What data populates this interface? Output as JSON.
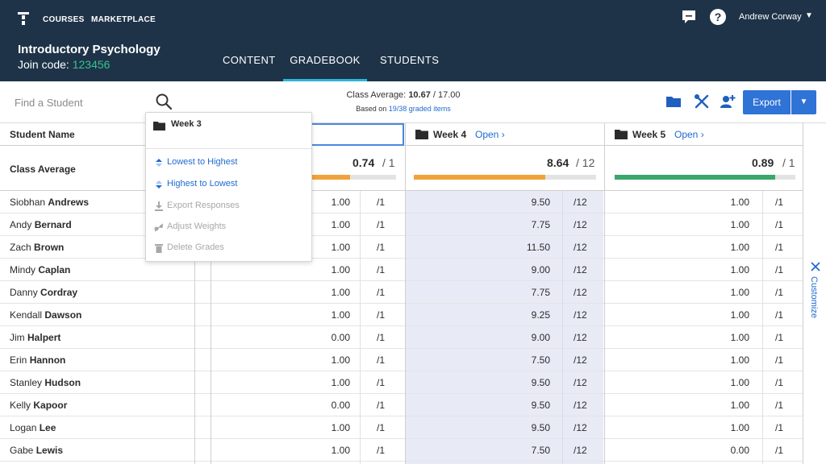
{
  "nav": {
    "links": [
      "COURSES",
      "MARKETPLACE"
    ],
    "course_title": "Introductory Psychology",
    "join_label": "Join code:",
    "join_code": "123456",
    "tabs": [
      {
        "label": "CONTENT",
        "active": false
      },
      {
        "label": "GRADEBOOK",
        "active": true
      },
      {
        "label": "STUDENTS",
        "active": false
      }
    ],
    "user_name": "Andrew Corway",
    "colors": {
      "header_bg": "#1e3348",
      "join_code": "#34c38f",
      "tab_underline": "#2bb5d8"
    }
  },
  "toolbar": {
    "search_placeholder": "Find a Student",
    "class_average_label": "Class Average:",
    "class_average_value": "10.67",
    "class_average_max": "/ 17.00",
    "based_on_label": "Based on",
    "graded_items": "19/38 graded items",
    "export_label": "Export",
    "icons": [
      "folder-icon",
      "wrench-icon",
      "add-user-icon"
    ],
    "colors": {
      "primary": "#2f73d6",
      "link": "#1f6bd1"
    }
  },
  "grid": {
    "name_header": "Student Name",
    "class_avg_label": "Class Average",
    "weeks": [
      {
        "name": "Week 3",
        "open_label": "",
        "avg": "0.74",
        "max": "/ 1",
        "fill": 0.74,
        "color": "#f0a23b"
      },
      {
        "name": "Week 4",
        "open_label": "Open",
        "avg": "8.64",
        "max": "/ 12",
        "fill": 0.72,
        "color": "#f0a23b"
      },
      {
        "name": "Week 5",
        "open_label": "Open",
        "avg": "0.89",
        "max": "/ 1",
        "fill": 0.89,
        "color": "#3aa66a"
      }
    ],
    "students": [
      {
        "first": "Siobhan",
        "last": "Andrews",
        "w3": "1.00",
        "w3max": "/1",
        "w4": "9.50",
        "w4max": "/12",
        "w5": "1.00",
        "w5max": "/1"
      },
      {
        "first": "Andy",
        "last": "Bernard",
        "w3": "1.00",
        "w3max": "/1",
        "w4": "7.75",
        "w4max": "/12",
        "w5": "1.00",
        "w5max": "/1"
      },
      {
        "first": "Zach",
        "last": "Brown",
        "w3": "1.00",
        "w3max": "/1",
        "w4": "11.50",
        "w4max": "/12",
        "w5": "1.00",
        "w5max": "/1"
      },
      {
        "first": "Mindy",
        "last": "Caplan",
        "w3": "1.00",
        "w3max": "/1",
        "w4": "9.00",
        "w4max": "/12",
        "w5": "1.00",
        "w5max": "/1"
      },
      {
        "first": "Danny",
        "last": "Cordray",
        "w3": "1.00",
        "w3max": "/1",
        "w4": "7.75",
        "w4max": "/12",
        "w5": "1.00",
        "w5max": "/1"
      },
      {
        "first": "Kendall",
        "last": "Dawson",
        "w3": "1.00",
        "w3max": "/1",
        "w4": "9.25",
        "w4max": "/12",
        "w5": "1.00",
        "w5max": "/1"
      },
      {
        "first": "Jim",
        "last": "Halpert",
        "w3": "0.00",
        "w3max": "/1",
        "w4": "9.00",
        "w4max": "/12",
        "w5": "1.00",
        "w5max": "/1"
      },
      {
        "first": "Erin",
        "last": "Hannon",
        "w3": "1.00",
        "w3max": "/1",
        "w4": "7.50",
        "w4max": "/12",
        "w5": "1.00",
        "w5max": "/1"
      },
      {
        "first": "Stanley",
        "last": "Hudson",
        "w3": "1.00",
        "w3max": "/1",
        "w4": "9.50",
        "w4max": "/12",
        "w5": "1.00",
        "w5max": "/1"
      },
      {
        "first": "Kelly",
        "last": "Kapoor",
        "w3": "0.00",
        "w3max": "/1",
        "w4": "9.50",
        "w4max": "/12",
        "w5": "1.00",
        "w5max": "/1"
      },
      {
        "first": "Logan",
        "last": "Lee",
        "w3": "1.00",
        "w3max": "/1",
        "w4": "9.50",
        "w4max": "/12",
        "w5": "1.00",
        "w5max": "/1"
      },
      {
        "first": "Gabe",
        "last": "Lewis",
        "w3": "1.00",
        "w3max": "/1",
        "w4": "7.50",
        "w4max": "/12",
        "w5": "0.00",
        "w5max": "/1"
      }
    ]
  },
  "menu": {
    "title": "Week 3",
    "items": [
      {
        "label": "Lowest to Highest",
        "icon": "sort-ascending-icon",
        "enabled": true
      },
      {
        "label": "Highest to Lowest",
        "icon": "sort-descending-icon",
        "enabled": true
      },
      {
        "label": "Export Responses",
        "icon": "download-icon",
        "enabled": false
      },
      {
        "label": "Adjust Weights",
        "icon": "scale-icon",
        "enabled": false
      },
      {
        "label": "Delete Grades",
        "icon": "trash-icon",
        "enabled": false
      }
    ]
  },
  "customize_label": "Customize"
}
